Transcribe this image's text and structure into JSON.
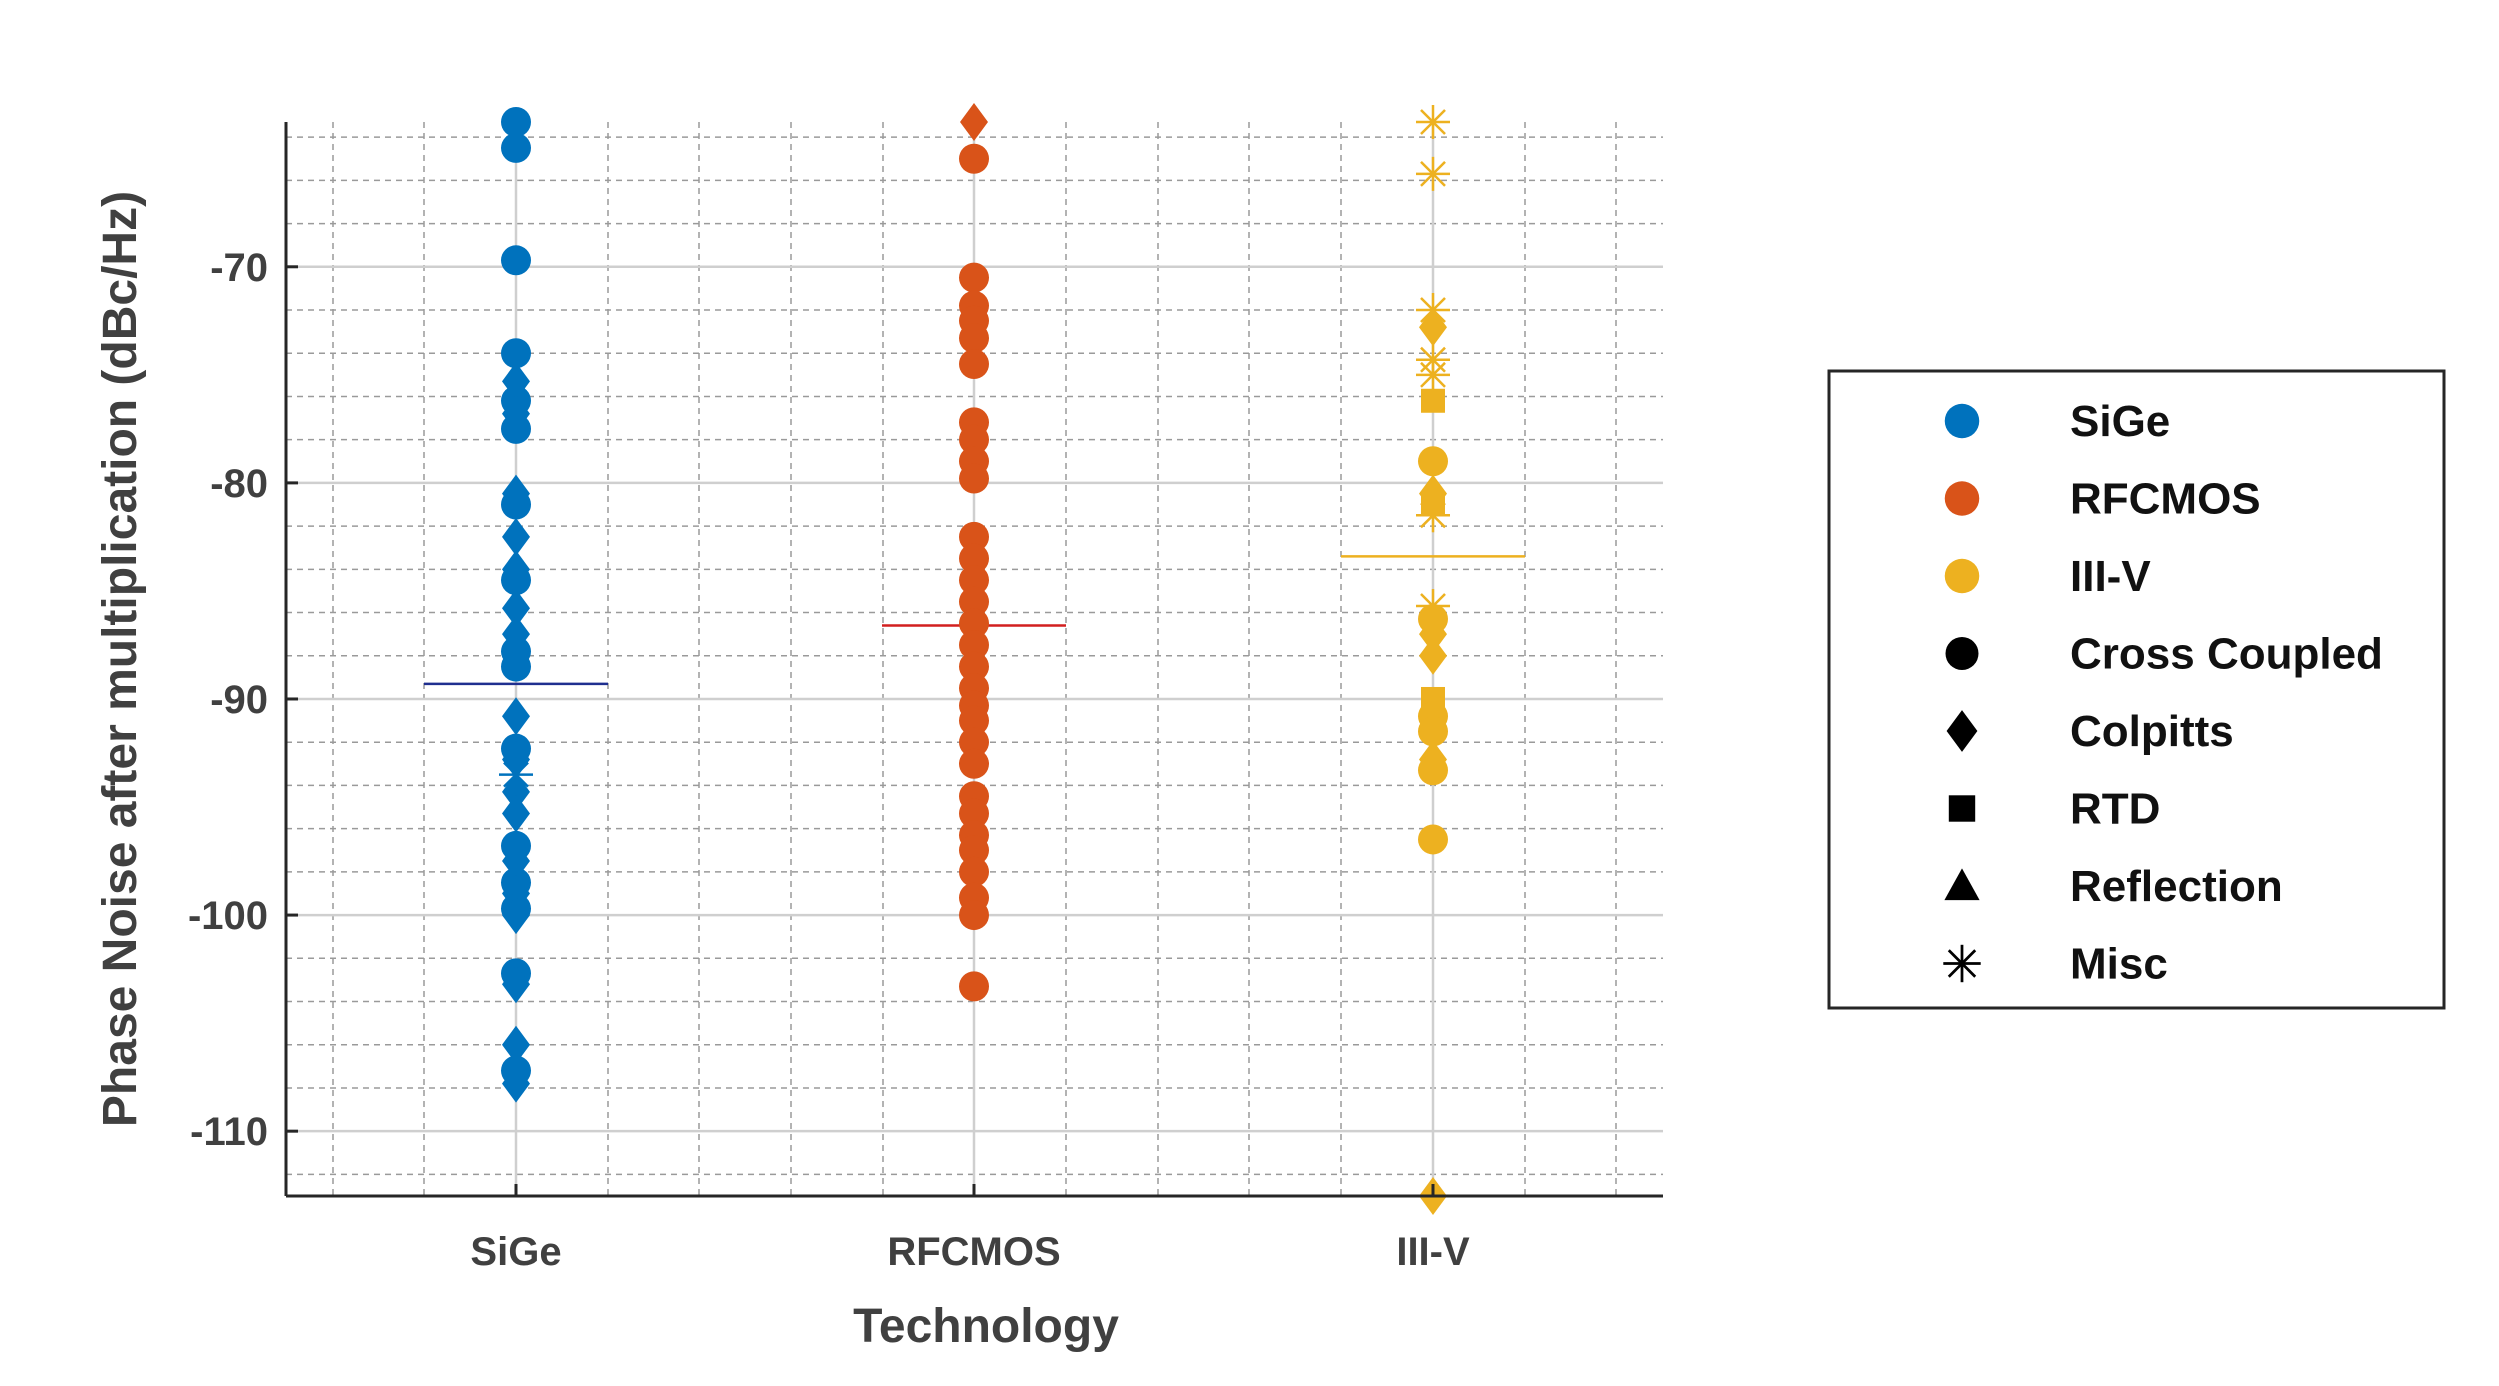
{
  "chart_data": {
    "type": "scatter",
    "title": "",
    "xlabel": "Technology",
    "ylabel": "Phase Noise after multiplication (dBc/Hz)",
    "categories": [
      "SiGe",
      "RFCMOS",
      "III-V"
    ],
    "ylim": [
      -113,
      -63.3
    ],
    "yticks": [
      -110,
      -100,
      -90,
      -80,
      -70
    ],
    "ytick_labels": [
      "-110",
      "-100",
      "-90",
      "-80",
      "-70"
    ],
    "grid": true,
    "legend_position": "outside-right",
    "colors": {
      "SiGe": "#0072BD",
      "RFCMOS": "#D95319",
      "III-V": "#EDB120"
    },
    "mean_colors": {
      "SiGe": "#1f2f8f",
      "RFCMOS": "#d21f1f",
      "III-V": "#EDB120"
    },
    "means": [
      -89.3,
      -86.6,
      -83.4
    ],
    "legend": [
      {
        "label": "SiGe",
        "kind": "color",
        "color": "#0072BD",
        "marker": "circle"
      },
      {
        "label": "RFCMOS",
        "kind": "color",
        "color": "#D95319",
        "marker": "circle"
      },
      {
        "label": "III-V",
        "kind": "color",
        "color": "#EDB120",
        "marker": "circle"
      },
      {
        "label": "Cross Coupled",
        "kind": "shape",
        "color": "#000000",
        "marker": "circle"
      },
      {
        "label": "Colpitts",
        "kind": "shape",
        "color": "#000000",
        "marker": "diamond"
      },
      {
        "label": "RTD",
        "kind": "shape",
        "color": "#000000",
        "marker": "square"
      },
      {
        "label": "Reflection",
        "kind": "shape",
        "color": "#000000",
        "marker": "triangle"
      },
      {
        "label": "Misc",
        "kind": "shape",
        "color": "#000000",
        "marker": "asterisk"
      }
    ],
    "series": [
      {
        "name": "SiGe",
        "points": [
          {
            "y": -63.3,
            "marker": "circle"
          },
          {
            "y": -64.5,
            "marker": "circle"
          },
          {
            "y": -69.7,
            "marker": "circle"
          },
          {
            "y": -74.0,
            "marker": "circle"
          },
          {
            "y": -75.3,
            "marker": "diamond"
          },
          {
            "y": -76.2,
            "marker": "circle"
          },
          {
            "y": -76.8,
            "marker": "diamond"
          },
          {
            "y": -77.5,
            "marker": "circle"
          },
          {
            "y": -80.5,
            "marker": "diamond"
          },
          {
            "y": -81.0,
            "marker": "circle"
          },
          {
            "y": -82.5,
            "marker": "diamond"
          },
          {
            "y": -84.0,
            "marker": "diamond"
          },
          {
            "y": -84.5,
            "marker": "circle"
          },
          {
            "y": -85.8,
            "marker": "diamond"
          },
          {
            "y": -87.0,
            "marker": "diamond"
          },
          {
            "y": -87.8,
            "marker": "circle"
          },
          {
            "y": -88.5,
            "marker": "circle"
          },
          {
            "y": -90.8,
            "marker": "diamond"
          },
          {
            "y": -92.3,
            "marker": "circle"
          },
          {
            "y": -92.8,
            "marker": "diamond"
          },
          {
            "y": -93.5,
            "marker": "asterisk"
          },
          {
            "y": -94.3,
            "marker": "diamond"
          },
          {
            "y": -95.3,
            "marker": "diamond"
          },
          {
            "y": -96.8,
            "marker": "circle"
          },
          {
            "y": -97.5,
            "marker": "diamond"
          },
          {
            "y": -98.5,
            "marker": "circle"
          },
          {
            "y": -99.0,
            "marker": "diamond"
          },
          {
            "y": -99.7,
            "marker": "circle"
          },
          {
            "y": -100.0,
            "marker": "diamond"
          },
          {
            "y": -102.7,
            "marker": "circle"
          },
          {
            "y": -103.2,
            "marker": "diamond"
          },
          {
            "y": -106.0,
            "marker": "diamond"
          },
          {
            "y": -107.2,
            "marker": "circle"
          },
          {
            "y": -107.8,
            "marker": "diamond"
          }
        ]
      },
      {
        "name": "RFCMOS",
        "points": [
          {
            "y": -63.3,
            "marker": "diamond"
          },
          {
            "y": -65.0,
            "marker": "circle"
          },
          {
            "y": -70.5,
            "marker": "circle"
          },
          {
            "y": -71.8,
            "marker": "circle"
          },
          {
            "y": -72.5,
            "marker": "circle"
          },
          {
            "y": -73.3,
            "marker": "circle"
          },
          {
            "y": -74.5,
            "marker": "circle"
          },
          {
            "y": -77.2,
            "marker": "circle"
          },
          {
            "y": -78.0,
            "marker": "circle"
          },
          {
            "y": -79.0,
            "marker": "circle"
          },
          {
            "y": -79.8,
            "marker": "circle"
          },
          {
            "y": -82.5,
            "marker": "circle"
          },
          {
            "y": -83.5,
            "marker": "circle"
          },
          {
            "y": -84.5,
            "marker": "circle"
          },
          {
            "y": -85.5,
            "marker": "circle"
          },
          {
            "y": -86.5,
            "marker": "circle"
          },
          {
            "y": -87.5,
            "marker": "circle"
          },
          {
            "y": -88.5,
            "marker": "circle"
          },
          {
            "y": -89.5,
            "marker": "circle"
          },
          {
            "y": -90.3,
            "marker": "circle"
          },
          {
            "y": -91.0,
            "marker": "circle"
          },
          {
            "y": -92.0,
            "marker": "circle"
          },
          {
            "y": -93.0,
            "marker": "circle"
          },
          {
            "y": -94.5,
            "marker": "circle"
          },
          {
            "y": -95.3,
            "marker": "circle"
          },
          {
            "y": -96.3,
            "marker": "circle"
          },
          {
            "y": -97.0,
            "marker": "circle"
          },
          {
            "y": -98.0,
            "marker": "circle"
          },
          {
            "y": -99.2,
            "marker": "circle"
          },
          {
            "y": -100.0,
            "marker": "circle"
          },
          {
            "y": -103.3,
            "marker": "circle"
          }
        ]
      },
      {
        "name": "III-V",
        "points": [
          {
            "y": -63.3,
            "marker": "asterisk"
          },
          {
            "y": -65.7,
            "marker": "asterisk"
          },
          {
            "y": -72.0,
            "marker": "asterisk"
          },
          {
            "y": -72.8,
            "marker": "diamond"
          },
          {
            "y": -74.3,
            "marker": "asterisk"
          },
          {
            "y": -75.0,
            "marker": "asterisk"
          },
          {
            "y": -76.2,
            "marker": "square"
          },
          {
            "y": -79.0,
            "marker": "circle"
          },
          {
            "y": -80.5,
            "marker": "diamond"
          },
          {
            "y": -81.0,
            "marker": "square"
          },
          {
            "y": -81.5,
            "marker": "asterisk"
          },
          {
            "y": -85.7,
            "marker": "asterisk"
          },
          {
            "y": -86.3,
            "marker": "circle"
          },
          {
            "y": -87.0,
            "marker": "diamond"
          },
          {
            "y": -88.0,
            "marker": "diamond"
          },
          {
            "y": -90.0,
            "marker": "square"
          },
          {
            "y": -90.8,
            "marker": "circle"
          },
          {
            "y": -91.5,
            "marker": "circle"
          },
          {
            "y": -92.8,
            "marker": "diamond"
          },
          {
            "y": -93.3,
            "marker": "circle"
          },
          {
            "y": -96.5,
            "marker": "circle"
          },
          {
            "y": -113.0,
            "marker": "diamond"
          }
        ]
      }
    ]
  }
}
